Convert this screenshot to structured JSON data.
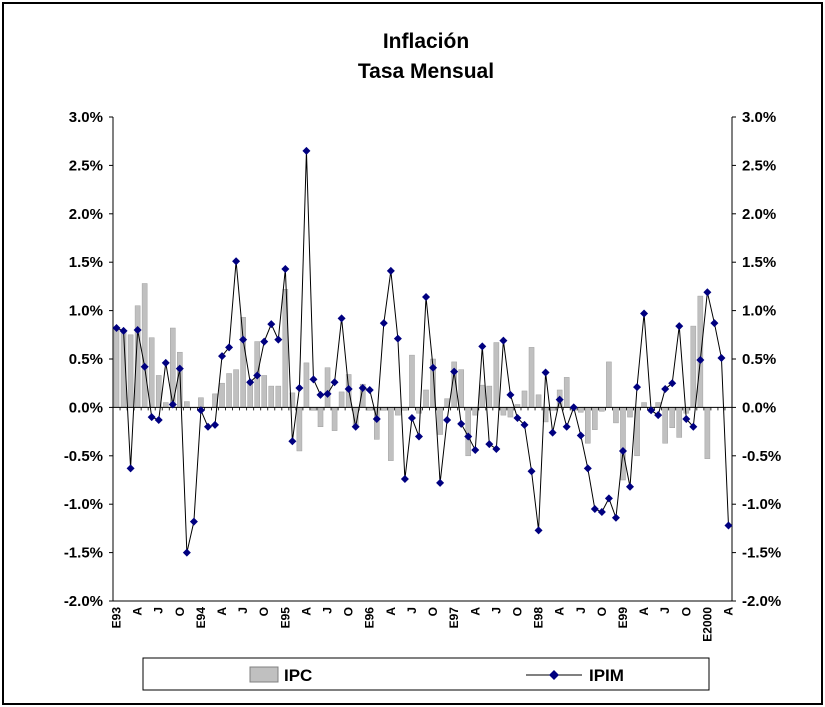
{
  "chart_data": {
    "type": "bar",
    "title": "Inflación",
    "subtitle": "Tasa Mensual",
    "xlabel": "",
    "ylabel": "",
    "ylim": [
      -2.0,
      3.0
    ],
    "yticks_left": [
      "3.0%",
      "2.5%",
      "2.0%",
      "1.5%",
      "1.0%",
      "0.5%",
      "0.0%",
      "-0.5%",
      "-1.0%",
      "-1.5%",
      "-2.0%"
    ],
    "yticks_right": [
      "3.0%",
      "2.5%",
      "2.0%",
      "1.5%",
      "1.0%",
      "0.5%",
      "0.0%",
      "-0.5%",
      "-1.0%",
      "-1.5%",
      "-2.0%"
    ],
    "x_tick_labels": [
      {
        "i": 0,
        "label": "E93"
      },
      {
        "i": 3,
        "label": "A"
      },
      {
        "i": 6,
        "label": "J"
      },
      {
        "i": 9,
        "label": "O"
      },
      {
        "i": 12,
        "label": "E94"
      },
      {
        "i": 15,
        "label": "A"
      },
      {
        "i": 18,
        "label": "J"
      },
      {
        "i": 21,
        "label": "O"
      },
      {
        "i": 24,
        "label": "E95"
      },
      {
        "i": 27,
        "label": "A"
      },
      {
        "i": 30,
        "label": "J"
      },
      {
        "i": 33,
        "label": "O"
      },
      {
        "i": 36,
        "label": "E96"
      },
      {
        "i": 39,
        "label": "A"
      },
      {
        "i": 42,
        "label": "J"
      },
      {
        "i": 45,
        "label": "O"
      },
      {
        "i": 48,
        "label": "E97"
      },
      {
        "i": 51,
        "label": "A"
      },
      {
        "i": 54,
        "label": "J"
      },
      {
        "i": 57,
        "label": "O"
      },
      {
        "i": 60,
        "label": "E98"
      },
      {
        "i": 63,
        "label": "A"
      },
      {
        "i": 66,
        "label": "J"
      },
      {
        "i": 69,
        "label": "O"
      },
      {
        "i": 72,
        "label": "E99"
      },
      {
        "i": 75,
        "label": "A"
      },
      {
        "i": 78,
        "label": "J"
      },
      {
        "i": 81,
        "label": "O"
      },
      {
        "i": 84,
        "label": "E2000"
      },
      {
        "i": 87,
        "label": "A"
      }
    ],
    "series": [
      {
        "name": "IPC",
        "type": "bar",
        "color": "#c0c0c0",
        "values": [
          0.82,
          0.79,
          0.75,
          1.05,
          1.28,
          0.72,
          0.33,
          0.05,
          0.82,
          0.57,
          0.06,
          0.0,
          0.1,
          0.0,
          0.14,
          0.25,
          0.35,
          0.39,
          0.93,
          0.27,
          0.68,
          0.33,
          0.22,
          0.22,
          1.22,
          0.15,
          -0.45,
          0.46,
          -0.03,
          -0.2,
          0.41,
          -0.24,
          0.16,
          0.34,
          -0.2,
          0.24,
          -0.03,
          -0.33,
          -0.03,
          -0.55,
          -0.08,
          -0.03,
          0.54,
          -0.06,
          0.18,
          0.5,
          -0.28,
          0.09,
          0.47,
          0.39,
          -0.5,
          -0.08,
          0.23,
          0.22,
          0.67,
          -0.08,
          -0.1,
          0.03,
          0.17,
          0.62,
          0.13,
          -0.15,
          -0.03,
          0.18,
          0.31,
          -0.03,
          -0.05,
          -0.37,
          -0.23,
          -0.04,
          0.47,
          -0.16,
          -0.75,
          -0.1,
          -0.5,
          0.05,
          -0.05,
          0.05,
          -0.37,
          -0.21,
          -0.31,
          -0.06,
          0.84,
          1.15,
          -0.53
        ]
      },
      {
        "name": "IPIM",
        "type": "line",
        "color": "#000080",
        "values": [
          0.82,
          0.79,
          -0.63,
          0.8,
          0.42,
          -0.1,
          -0.13,
          0.46,
          0.03,
          0.4,
          -1.5,
          -1.18,
          -0.03,
          -0.2,
          -0.18,
          0.53,
          0.62,
          1.51,
          0.7,
          0.26,
          0.33,
          0.68,
          0.86,
          0.7,
          1.43,
          -0.35,
          0.2,
          2.65,
          0.29,
          0.13,
          0.14,
          0.26,
          0.92,
          0.19,
          -0.2,
          0.2,
          0.18,
          -0.12,
          0.87,
          1.41,
          0.71,
          -0.74,
          -0.11,
          -0.3,
          1.14,
          0.41,
          -0.78,
          -0.13,
          0.37,
          -0.17,
          -0.3,
          -0.44,
          0.63,
          -0.38,
          -0.43,
          0.69,
          0.13,
          -0.11,
          -0.18,
          -0.66,
          -1.27,
          0.36,
          -0.26,
          0.08,
          -0.2,
          0.0,
          -0.29,
          -0.63,
          -1.05,
          -1.08,
          -0.94,
          -1.14,
          -0.45,
          -0.82,
          0.21,
          0.97,
          -0.03,
          -0.08,
          0.19,
          0.25,
          0.84,
          -0.12,
          -0.2,
          0.49,
          1.19,
          0.87,
          0.51,
          -1.22
        ]
      }
    ],
    "legend": {
      "placement": "bottom",
      "entries": [
        "IPC",
        "IPIM"
      ]
    }
  }
}
